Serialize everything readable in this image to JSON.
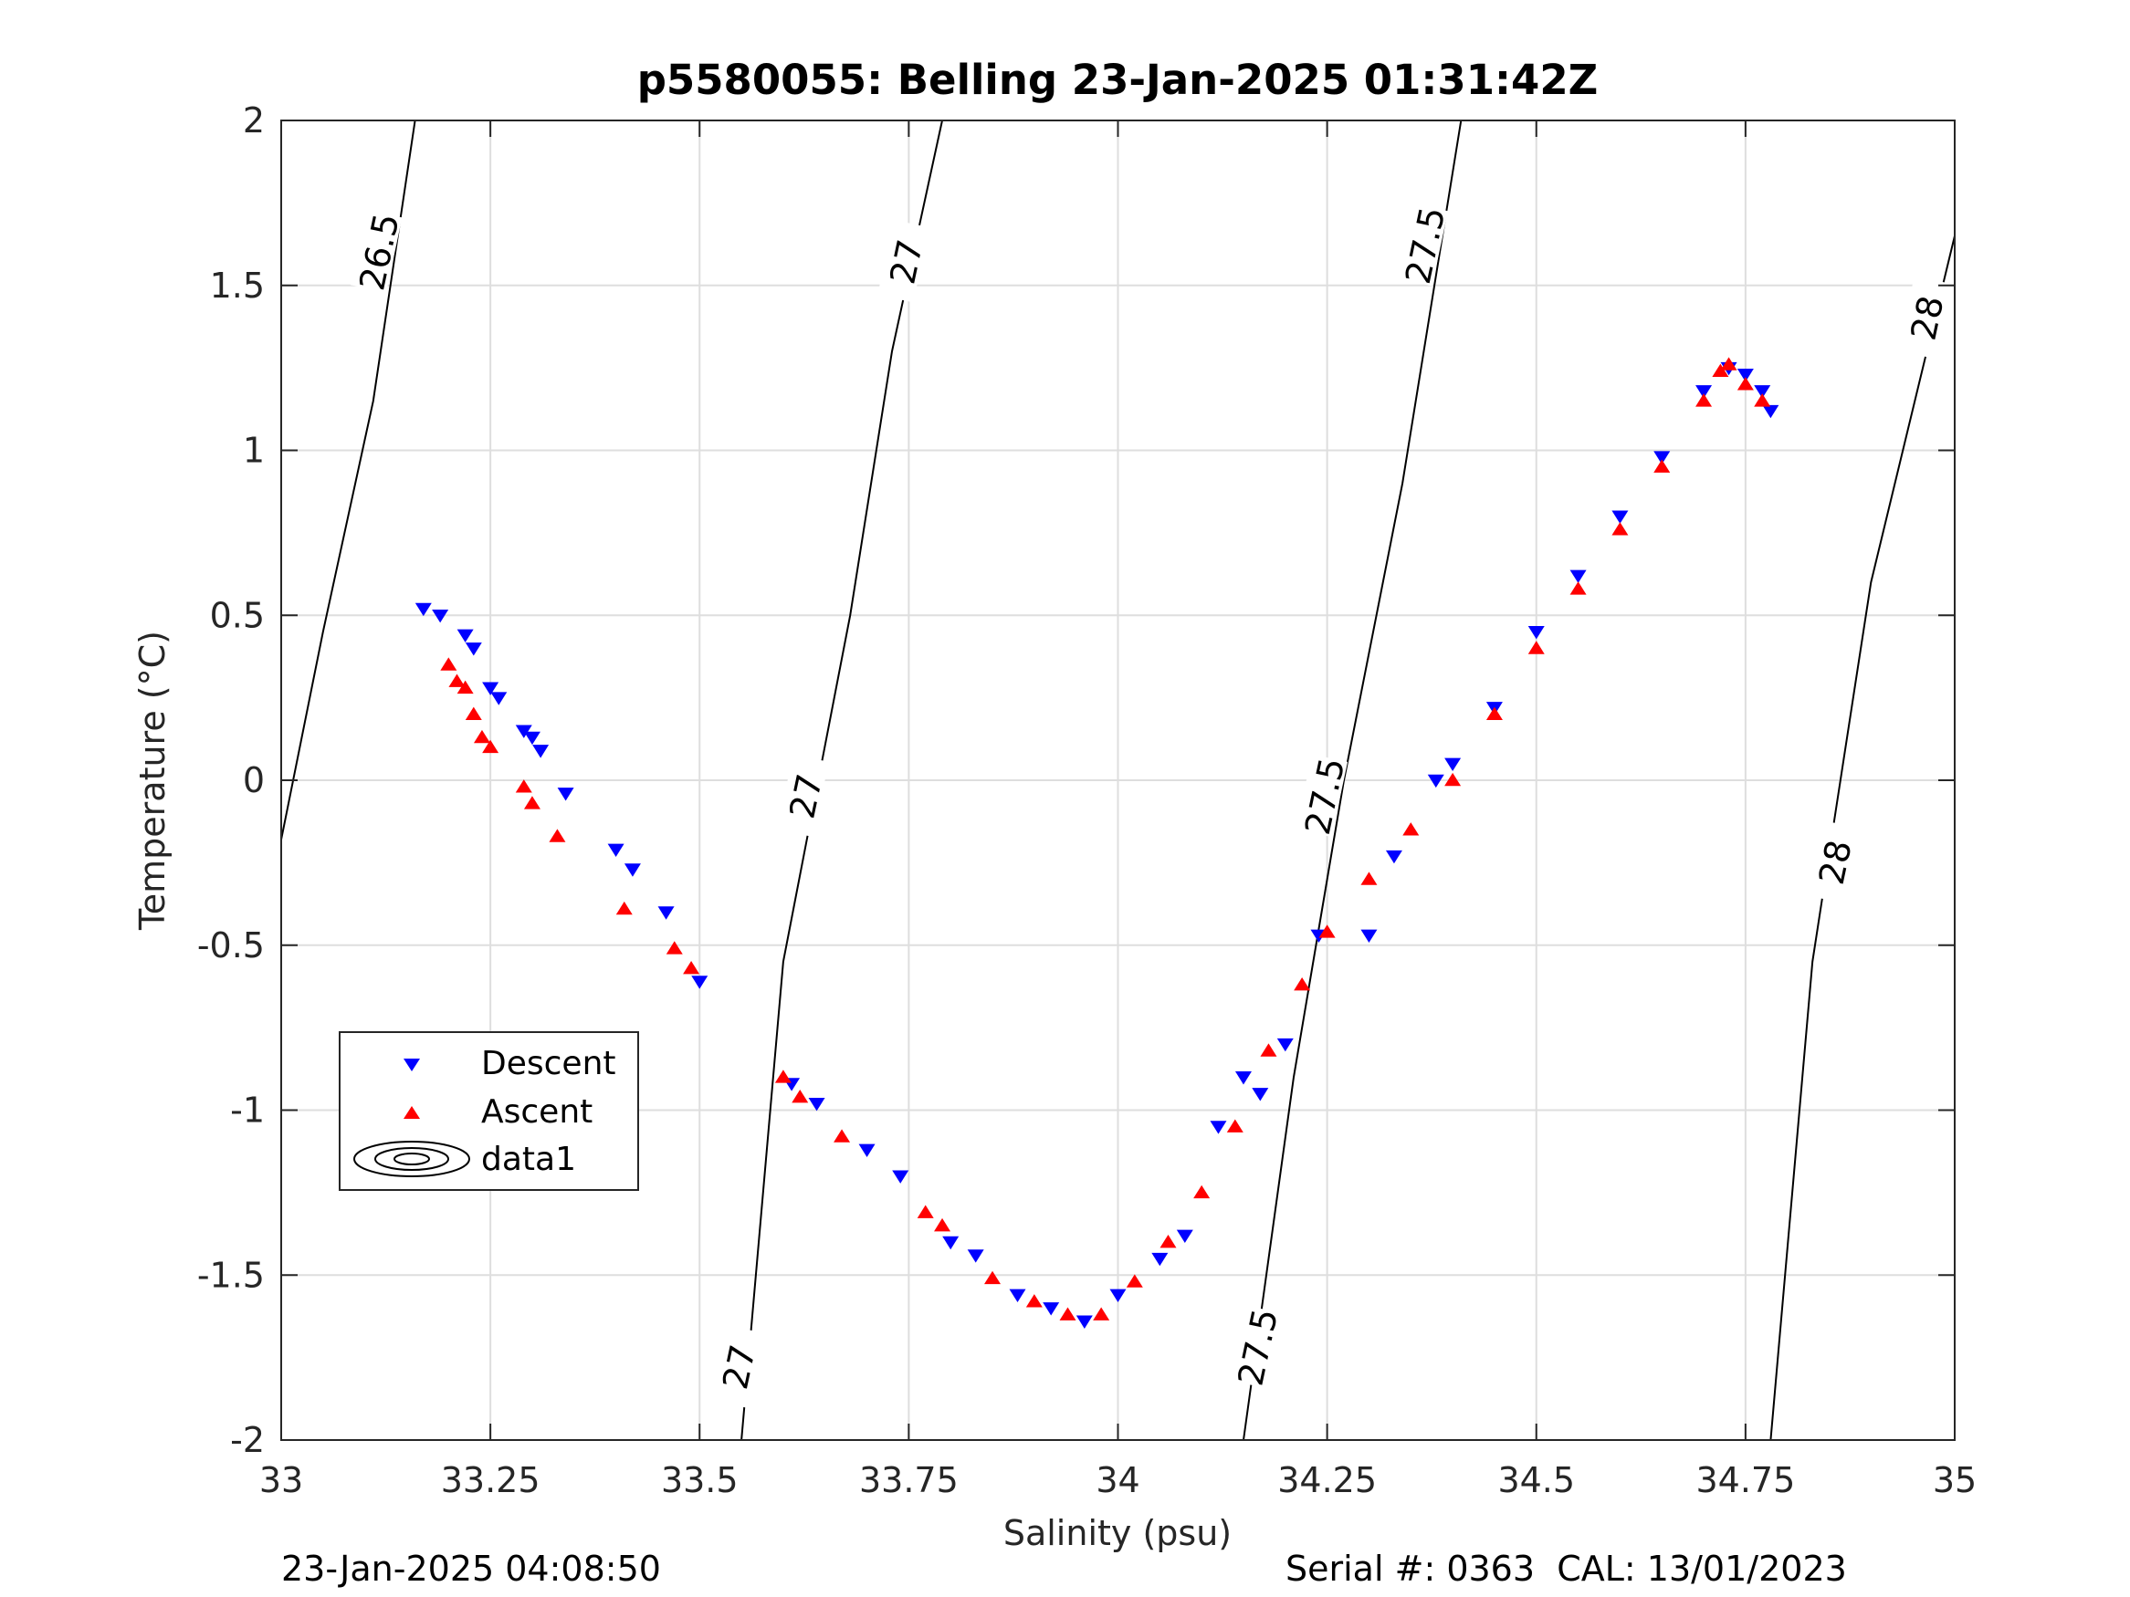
{
  "chart_data": {
    "type": "scatter",
    "title": "p5580055: Belling 23-Jan-2025 01:31:42Z",
    "xlabel": "Salinity (psu)",
    "ylabel": "Temperature (°C)",
    "xlim": [
      33,
      35
    ],
    "ylim": [
      -2,
      2
    ],
    "xticks": [
      "33",
      "33.25",
      "33.5",
      "33.75",
      "34",
      "34.25",
      "34.5",
      "34.75",
      "35"
    ],
    "yticks": [
      "-2",
      "-1.5",
      "-1",
      "-0.5",
      "0",
      "0.5",
      "1",
      "1.5",
      "2"
    ],
    "grid": true,
    "legend": {
      "placement": "lower-left",
      "entries": [
        "Descent",
        "Ascent",
        "data1"
      ]
    },
    "series": [
      {
        "name": "Descent",
        "marker": "triangle-down",
        "color": "#0000ff",
        "points": [
          [
            33.17,
            0.52
          ],
          [
            33.19,
            0.5
          ],
          [
            33.22,
            0.44
          ],
          [
            33.23,
            0.4
          ],
          [
            33.25,
            0.28
          ],
          [
            33.26,
            0.25
          ],
          [
            33.29,
            0.15
          ],
          [
            33.3,
            0.13
          ],
          [
            33.31,
            0.09
          ],
          [
            33.34,
            -0.04
          ],
          [
            33.4,
            -0.21
          ],
          [
            33.42,
            -0.27
          ],
          [
            33.46,
            -0.4
          ],
          [
            33.5,
            -0.61
          ],
          [
            33.61,
            -0.92
          ],
          [
            33.64,
            -0.98
          ],
          [
            33.7,
            -1.12
          ],
          [
            33.74,
            -1.2
          ],
          [
            33.8,
            -1.4
          ],
          [
            33.83,
            -1.44
          ],
          [
            33.88,
            -1.56
          ],
          [
            33.92,
            -1.6
          ],
          [
            33.96,
            -1.64
          ],
          [
            34.0,
            -1.56
          ],
          [
            34.05,
            -1.45
          ],
          [
            34.08,
            -1.38
          ],
          [
            34.12,
            -1.05
          ],
          [
            34.15,
            -0.9
          ],
          [
            34.17,
            -0.95
          ],
          [
            34.2,
            -0.8
          ],
          [
            34.24,
            -0.47
          ],
          [
            34.3,
            -0.47
          ],
          [
            34.33,
            -0.23
          ],
          [
            34.38,
            0.0
          ],
          [
            34.4,
            0.05
          ],
          [
            34.45,
            0.22
          ],
          [
            34.5,
            0.45
          ],
          [
            34.55,
            0.62
          ],
          [
            34.6,
            0.8
          ],
          [
            34.65,
            0.98
          ],
          [
            34.7,
            1.18
          ],
          [
            34.73,
            1.25
          ],
          [
            34.75,
            1.23
          ],
          [
            34.77,
            1.18
          ],
          [
            34.78,
            1.12
          ]
        ]
      },
      {
        "name": "Ascent",
        "marker": "triangle-up",
        "color": "#ff0000",
        "points": [
          [
            33.2,
            0.35
          ],
          [
            33.21,
            0.3
          ],
          [
            33.22,
            0.28
          ],
          [
            33.23,
            0.2
          ],
          [
            33.24,
            0.13
          ],
          [
            33.25,
            0.1
          ],
          [
            33.29,
            -0.02
          ],
          [
            33.3,
            -0.07
          ],
          [
            33.33,
            -0.17
          ],
          [
            33.41,
            -0.39
          ],
          [
            33.47,
            -0.51
          ],
          [
            33.49,
            -0.57
          ],
          [
            33.6,
            -0.9
          ],
          [
            33.62,
            -0.96
          ],
          [
            33.67,
            -1.08
          ],
          [
            33.77,
            -1.31
          ],
          [
            33.79,
            -1.35
          ],
          [
            33.85,
            -1.51
          ],
          [
            33.9,
            -1.58
          ],
          [
            33.94,
            -1.62
          ],
          [
            33.98,
            -1.62
          ],
          [
            34.02,
            -1.52
          ],
          [
            34.06,
            -1.4
          ],
          [
            34.1,
            -1.25
          ],
          [
            34.14,
            -1.05
          ],
          [
            34.18,
            -0.82
          ],
          [
            34.22,
            -0.62
          ],
          [
            34.25,
            -0.46
          ],
          [
            34.3,
            -0.3
          ],
          [
            34.35,
            -0.15
          ],
          [
            34.4,
            0.0
          ],
          [
            34.45,
            0.2
          ],
          [
            34.5,
            0.4
          ],
          [
            34.55,
            0.58
          ],
          [
            34.6,
            0.76
          ],
          [
            34.65,
            0.95
          ],
          [
            34.7,
            1.15
          ],
          [
            34.72,
            1.24
          ],
          [
            34.73,
            1.26
          ],
          [
            34.75,
            1.2
          ],
          [
            34.77,
            1.15
          ]
        ]
      }
    ],
    "contours": {
      "name": "data1",
      "color": "#000000",
      "lines": [
        {
          "level": "26.5",
          "points": [
            [
              33.0,
              -0.18
            ],
            [
              33.05,
              0.45
            ],
            [
              33.11,
              1.15
            ],
            [
              33.16,
              2.0
            ]
          ]
        },
        {
          "level": "27",
          "points": [
            [
              33.55,
              -2.0
            ],
            [
              33.6,
              -0.55
            ],
            [
              33.68,
              0.5
            ],
            [
              33.73,
              1.3
            ],
            [
              33.79,
              2.0
            ]
          ]
        },
        {
          "level": "27.5",
          "points": [
            [
              34.15,
              -2.0
            ],
            [
              34.21,
              -0.9
            ],
            [
              34.27,
              0.0
            ],
            [
              34.34,
              0.9
            ],
            [
              34.41,
              2.0
            ]
          ]
        },
        {
          "level": "28",
          "points": [
            [
              34.78,
              -2.0
            ],
            [
              34.83,
              -0.55
            ],
            [
              34.9,
              0.6
            ],
            [
              35.0,
              1.65
            ]
          ]
        }
      ],
      "labels": [
        {
          "text": "26.5",
          "at": [
            33.12,
            1.6
          ]
        },
        {
          "text": "27",
          "at": [
            33.75,
            1.57
          ]
        },
        {
          "text": "27",
          "at": [
            33.63,
            -0.05
          ]
        },
        {
          "text": "27",
          "at": [
            33.55,
            -1.78
          ]
        },
        {
          "text": "27.5",
          "at": [
            34.37,
            1.62
          ]
        },
        {
          "text": "27.5",
          "at": [
            34.25,
            -0.05
          ]
        },
        {
          "text": "27.5",
          "at": [
            34.17,
            -1.72
          ]
        },
        {
          "text": "28",
          "at": [
            34.97,
            1.4
          ]
        },
        {
          "text": "28",
          "at": [
            34.86,
            -0.25
          ]
        }
      ]
    }
  },
  "footer": {
    "timestamp": "23-Jan-2025 04:08:50",
    "serial": "Serial #: 0363  CAL: 13/01/2023"
  }
}
